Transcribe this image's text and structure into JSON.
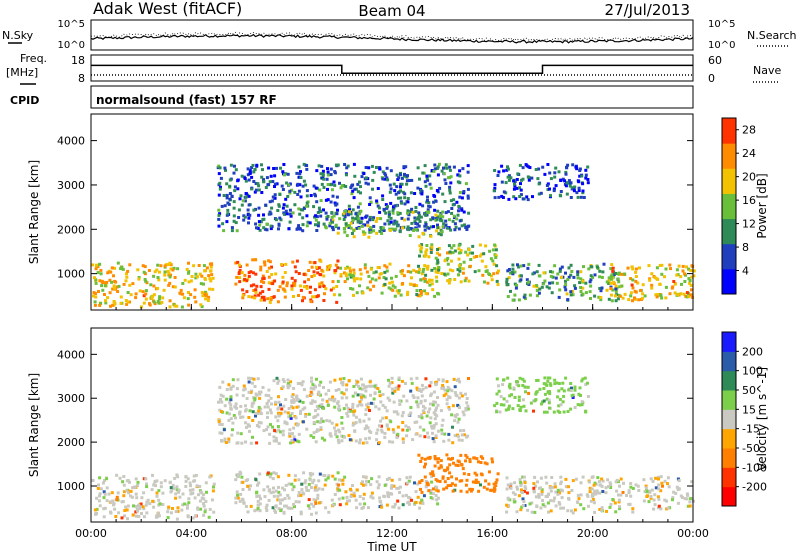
{
  "header": {
    "title_left": "Adak West (fitACF)",
    "title_center": "Beam 04",
    "title_right": "27/Jul/2013"
  },
  "params_panel": {
    "nsky_label": "N.Sky",
    "nsearch_label": "N.Search",
    "freq_label_1": "Freq.",
    "freq_label_2": "[MHz]",
    "nave_label": "Nave",
    "cpid_label": "CPID",
    "noise_ticks_left": [
      "10^5",
      "10^0"
    ],
    "noise_ticks_right": [
      "10^5",
      "10^0"
    ],
    "freq_ticks": [
      "18",
      "8"
    ],
    "nave_ticks": [
      "60",
      "0"
    ],
    "cpid_text": "normalsound (fast) 157 RF",
    "freq_series": [
      {
        "start": 0.0,
        "end": 10.0,
        "value": 14
      },
      {
        "start": 10.0,
        "end": 18.0,
        "value": 11
      },
      {
        "start": 18.0,
        "end": 24.0,
        "value": 14
      }
    ]
  },
  "chart_data": [
    {
      "type": "heatmap",
      "panel": "power",
      "ylabel": "Slant Range [km]",
      "xlabel": "",
      "x_ticks": [
        "00:00",
        "04:00",
        "08:00",
        "12:00",
        "16:00",
        "20:00",
        "00:00"
      ],
      "y_ticks": [
        "1000",
        "2000",
        "3000",
        "4000"
      ],
      "xlim": [
        0,
        24
      ],
      "ylim": [
        180,
        4600
      ],
      "colorbar": {
        "label": "Power [dB]",
        "ticks": [
          "4",
          "8",
          "12",
          "16",
          "20",
          "24",
          "28"
        ],
        "range": [
          0,
          30
        ],
        "colors": [
          "#0000ff",
          "#1f3fbf",
          "#2e8b57",
          "#6abf3a",
          "#f2c200",
          "#ff8c00",
          "#ff3300"
        ]
      },
      "regions": [
        {
          "t0": 0.0,
          "t1": 4.9,
          "r0": 280,
          "r1": 1300,
          "level": 20
        },
        {
          "t0": 5.7,
          "t1": 9.8,
          "r0": 380,
          "r1": 1350,
          "level": 24
        },
        {
          "t0": 9.8,
          "t1": 13.8,
          "r0": 520,
          "r1": 1250,
          "level": 18
        },
        {
          "t0": 13.0,
          "t1": 16.2,
          "r0": 780,
          "r1": 1700,
          "level": 16
        },
        {
          "t0": 16.5,
          "t1": 21.0,
          "r0": 420,
          "r1": 1250,
          "level": 12
        },
        {
          "t0": 20.5,
          "t1": 24.0,
          "r0": 420,
          "r1": 1250,
          "level": 20
        },
        {
          "t0": 5.0,
          "t1": 15.0,
          "r0": 2000,
          "r1": 3500,
          "level": 8
        },
        {
          "t0": 16.0,
          "t1": 19.8,
          "r0": 2700,
          "r1": 3500,
          "level": 6
        },
        {
          "t0": 9.5,
          "t1": 14.0,
          "r0": 1850,
          "r1": 2450,
          "level": 14
        }
      ]
    },
    {
      "type": "heatmap",
      "panel": "velocity",
      "ylabel": "Slant Range [km]",
      "xlabel": "Time UT",
      "x_ticks": [
        "00:00",
        "04:00",
        "08:00",
        "12:00",
        "16:00",
        "20:00",
        "00:00"
      ],
      "y_ticks": [
        "1000",
        "2000",
        "3000",
        "4000"
      ],
      "xlim": [
        0,
        24
      ],
      "ylim": [
        180,
        4600
      ],
      "colorbar": {
        "label": "Velocity [m s^-1]",
        "ticks": [
          "200",
          "100",
          "50",
          "15",
          "-15",
          "-50",
          "-100",
          "-200"
        ],
        "colors": [
          "#1a1aff",
          "#2a5caa",
          "#2e8b57",
          "#7ccf4a",
          "#c9c9c1",
          "#ffa500",
          "#ff7f00",
          "#ff3300",
          "#ff0000"
        ]
      },
      "regions": [
        {
          "t0": 0.0,
          "t1": 4.9,
          "r0": 280,
          "r1": 1300,
          "level": 0
        },
        {
          "t0": 5.7,
          "t1": 9.8,
          "r0": 380,
          "r1": 1350,
          "level": 0
        },
        {
          "t0": 9.8,
          "t1": 13.8,
          "r0": 520,
          "r1": 1250,
          "level": 0
        },
        {
          "t0": 13.0,
          "t1": 16.2,
          "r0": 900,
          "r1": 1750,
          "level": -80
        },
        {
          "t0": 16.5,
          "t1": 24.0,
          "r0": 420,
          "r1": 1250,
          "level": 0
        },
        {
          "t0": 5.0,
          "t1": 15.0,
          "r0": 2000,
          "r1": 3500,
          "level": 0
        },
        {
          "t0": 16.0,
          "t1": 19.8,
          "r0": 2700,
          "r1": 3500,
          "level": 30
        }
      ]
    }
  ]
}
